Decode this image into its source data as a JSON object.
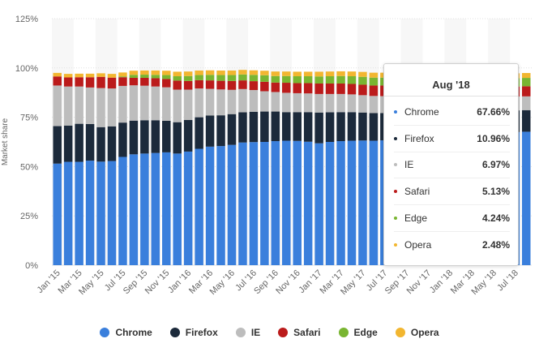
{
  "chart_data": {
    "type": "bar",
    "stacked": true,
    "ylabel": "Market share",
    "ylim": [
      0,
      125
    ],
    "yticks": [
      "0%",
      "25%",
      "50%",
      "75%",
      "100%",
      "125%"
    ],
    "categories": [
      "Jan '15",
      "Feb '15",
      "Mar '15",
      "Apr '15",
      "May '15",
      "Jun '15",
      "Jul '15",
      "Aug '15",
      "Sep '15",
      "Oct '15",
      "Nov '15",
      "Dec '15",
      "Jan '16",
      "Feb '16",
      "Mar '16",
      "Apr '16",
      "May '16",
      "Jun '16",
      "Jul '16",
      "Aug '16",
      "Sep '16",
      "Oct '16",
      "Nov '16",
      "Dec '16",
      "Jan '17",
      "Feb '17",
      "Mar '17",
      "Apr '17",
      "May '17",
      "Jun '17",
      "Jul '17",
      "Aug '17",
      "Sep '17",
      "Oct '17",
      "Nov '17",
      "Dec '17",
      "Jan '18",
      "Feb '18",
      "Mar '18",
      "Apr '18",
      "May '18",
      "Jun '18",
      "Jul '18",
      "Aug '18"
    ],
    "xtick_labels": [
      "Jan '15",
      "Mar '15",
      "May '15",
      "Jul '15",
      "Sep '15",
      "Nov '15",
      "Jan '16",
      "Mar '16",
      "May '16",
      "Jul '16",
      "Sep '16",
      "Nov '16",
      "Jan '17",
      "Mar '17",
      "May '17",
      "Jul '17",
      "Sep '17",
      "Nov '17",
      "Jan '18",
      "Mar '18",
      "May '18",
      "Jul '18"
    ],
    "legend_position": "bottom",
    "series": [
      {
        "name": "Chrome",
        "color": "#3a7fdc",
        "values": [
          51.5,
          52.4,
          52.4,
          53.0,
          52.5,
          52.8,
          54.9,
          56.2,
          56.6,
          56.9,
          57.2,
          56.6,
          57.6,
          59.0,
          60.1,
          60.4,
          61.0,
          62.2,
          62.4,
          62.5,
          62.9,
          63.1,
          63.0,
          62.6,
          61.8,
          62.5,
          62.9,
          63.1,
          63.2,
          63.1,
          63.3,
          63.5,
          63.9,
          64.5,
          64.7,
          65.0,
          65.5,
          66.0,
          66.3,
          66.7,
          67.0,
          67.3,
          67.5,
          67.66
        ]
      },
      {
        "name": "Firefox",
        "color": "#1c2a3b",
        "values": [
          19.0,
          18.4,
          19.3,
          18.6,
          17.5,
          17.6,
          17.4,
          17.1,
          16.9,
          16.6,
          16.0,
          15.9,
          16.0,
          16.0,
          15.8,
          15.6,
          15.6,
          15.3,
          15.4,
          15.4,
          15.0,
          14.5,
          14.6,
          15.0,
          15.6,
          15.0,
          14.7,
          14.5,
          14.2,
          14.0,
          13.8,
          13.4,
          13.0,
          12.6,
          12.3,
          12.0,
          11.8,
          11.6,
          11.4,
          11.3,
          11.2,
          11.1,
          11.0,
          10.96
        ]
      },
      {
        "name": "IE",
        "color": "#bdbdbd",
        "values": [
          20.6,
          19.8,
          18.9,
          18.5,
          19.8,
          19.2,
          18.6,
          17.9,
          17.5,
          17.1,
          17.0,
          16.5,
          15.4,
          14.6,
          13.5,
          13.1,
          12.3,
          11.8,
          11.0,
          10.3,
          9.9,
          9.8,
          9.6,
          9.5,
          9.4,
          9.3,
          9.2,
          9.0,
          8.8,
          8.7,
          8.6,
          8.5,
          8.4,
          8.2,
          8.0,
          7.9,
          7.7,
          7.5,
          7.4,
          7.3,
          7.2,
          7.1,
          7.0,
          6.97
        ]
      },
      {
        "name": "Safari",
        "color": "#bb1b1b",
        "values": [
          4.6,
          4.6,
          4.7,
          5.2,
          5.7,
          5.5,
          4.4,
          3.8,
          4.0,
          4.2,
          4.2,
          4.6,
          4.4,
          4.2,
          4.3,
          4.4,
          4.5,
          4.4,
          4.5,
          4.8,
          4.8,
          5.1,
          5.1,
          5.2,
          5.3,
          5.3,
          5.3,
          5.3,
          5.3,
          5.3,
          5.4,
          5.4,
          5.3,
          5.3,
          5.2,
          5.2,
          5.2,
          5.2,
          5.2,
          5.2,
          5.1,
          5.1,
          5.1,
          5.13
        ]
      },
      {
        "name": "Edge",
        "color": "#79b531",
        "values": [
          0.0,
          0.0,
          0.0,
          0.0,
          0.0,
          0.0,
          0.4,
          1.5,
          1.6,
          1.7,
          2.0,
          2.2,
          2.5,
          2.6,
          2.8,
          2.9,
          3.0,
          3.0,
          3.2,
          3.3,
          3.3,
          3.4,
          3.5,
          3.5,
          3.6,
          3.7,
          3.8,
          3.9,
          4.0,
          4.0,
          4.0,
          4.1,
          4.1,
          4.1,
          4.2,
          4.2,
          4.2,
          4.2,
          4.2,
          4.2,
          4.2,
          4.2,
          4.2,
          4.24
        ]
      },
      {
        "name": "Opera",
        "color": "#f2b630",
        "values": [
          1.8,
          1.8,
          1.8,
          1.8,
          1.8,
          1.9,
          2.0,
          2.1,
          2.1,
          2.2,
          2.2,
          2.3,
          2.3,
          2.3,
          2.3,
          2.3,
          2.3,
          2.3,
          2.3,
          2.3,
          2.3,
          2.3,
          2.3,
          2.3,
          2.4,
          2.4,
          2.4,
          2.4,
          2.5,
          2.5,
          2.5,
          2.5,
          2.5,
          2.5,
          2.5,
          2.5,
          2.5,
          2.5,
          2.5,
          2.5,
          2.5,
          2.5,
          2.5,
          2.48
        ]
      }
    ]
  },
  "tooltip": {
    "title": "Aug '18",
    "rows": [
      {
        "name": "Chrome",
        "value": "67.66%",
        "color": "#3a7fdc"
      },
      {
        "name": "Firefox",
        "value": "10.96%",
        "color": "#1c2a3b"
      },
      {
        "name": "IE",
        "value": "6.97%",
        "color": "#bdbdbd"
      },
      {
        "name": "Safari",
        "value": "5.13%",
        "color": "#bb1b1b"
      },
      {
        "name": "Edge",
        "value": "4.24%",
        "color": "#79b531"
      },
      {
        "name": "Opera",
        "value": "2.48%",
        "color": "#f2b630"
      }
    ]
  }
}
